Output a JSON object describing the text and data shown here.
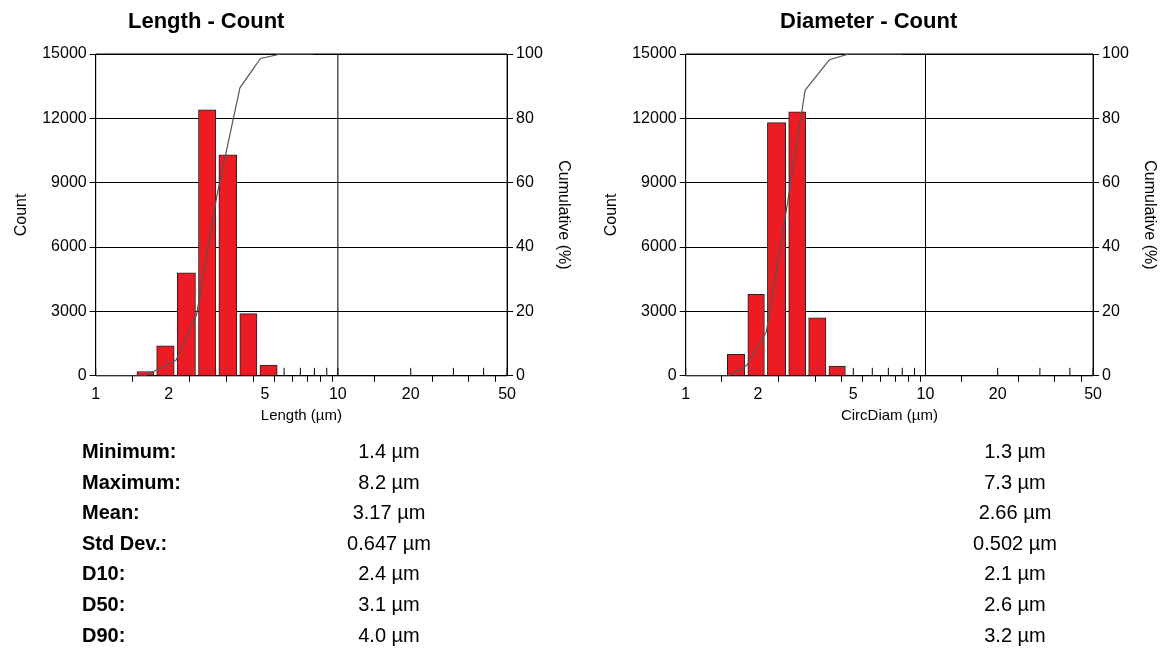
{
  "chart_data": [
    {
      "type": "histogram",
      "title": "Length - Count",
      "xlabel": "Length (µm)",
      "ylabel": "Count",
      "y2label": "Cumulative (%)",
      "log": "x",
      "grid": "y",
      "bins": [
        1.46,
        1.76,
        2.14,
        2.62,
        3.18,
        3.88,
        4.7,
        5.7
      ],
      "values": [
        200,
        1400,
        4800,
        12400,
        10300,
        2900,
        500
      ],
      "color": "#ed1c24",
      "series": [
        {
          "type": "line",
          "axis": "y2",
          "color": "#555555",
          "x": [
            1,
            1.6,
            2.15,
            2.61,
            3.16,
            3.94,
            4.79,
            5.82,
            7.96
          ],
          "values": [
            0,
            0,
            4.9,
            19,
            55.7,
            89.5,
            98.6,
            100,
            100
          ]
        }
      ],
      "xlim": [
        1,
        50
      ],
      "xticks": [
        1,
        2,
        {
          "value": 3,
          "label": null
        },
        {
          "value": 4,
          "label": null
        },
        5,
        {
          "value": 6,
          "label": null
        },
        {
          "value": 7,
          "label": null
        },
        {
          "value": 8,
          "label": null
        },
        {
          "value": 9,
          "label": null
        },
        10,
        20,
        {
          "value": 30,
          "label": null
        },
        {
          "value": 40,
          "label": null
        },
        50
      ],
      "ylim": [
        0,
        15000
      ],
      "yticks": [
        0,
        3000,
        6000,
        9000,
        12000,
        15000
      ],
      "y2lim": [
        0,
        100
      ],
      "y2ticks": [
        0,
        20,
        40,
        60,
        80,
        100
      ],
      "ref_lines": [
        {
          "axis": "x",
          "value": 10
        }
      ]
    },
    {
      "type": "histogram",
      "title": "Diameter - Count",
      "xlabel": "CircDiam (µm)",
      "ylabel": "Count",
      "y2label": "Cumulative (%)",
      "log": "x",
      "grid": "y",
      "bins": [
        1.47,
        1.79,
        2.16,
        2.65,
        3.21,
        3.9,
        4.7
      ],
      "values": [
        1000,
        3800,
        11800,
        12300,
        2700,
        450
      ],
      "color": "#ed1c24",
      "series": [
        {
          "type": "line",
          "axis": "y2",
          "color": "#555555",
          "x": [
            1,
            1.51,
            1.8,
            2.17,
            2.6,
            3.15,
            3.97,
            4.79,
            8
          ],
          "values": [
            0,
            0,
            3.3,
            13.7,
            49.2,
            88.8,
            98.2,
            100,
            100
          ]
        }
      ],
      "xlim": [
        1,
        50
      ],
      "xticks": [
        1,
        2,
        {
          "value": 3,
          "label": null
        },
        {
          "value": 4,
          "label": null
        },
        5,
        {
          "value": 6,
          "label": null
        },
        {
          "value": 7,
          "label": null
        },
        {
          "value": 8,
          "label": null
        },
        {
          "value": 9,
          "label": null
        },
        10,
        20,
        {
          "value": 30,
          "label": null
        },
        {
          "value": 40,
          "label": null
        },
        50
      ],
      "ylim": [
        0,
        15000
      ],
      "yticks": [
        0,
        3000,
        6000,
        9000,
        12000,
        15000
      ],
      "y2lim": [
        0,
        100
      ],
      "y2ticks": [
        0,
        20,
        40,
        60,
        80,
        100
      ],
      "ref_lines": [
        {
          "axis": "x",
          "value": 10
        }
      ]
    },
    {
      "type": "other",
      "annotations": [
        "Minimum:",
        "1.4 µm",
        "1.3 µm",
        "Maximum:",
        "8.2 µm",
        "7.3 µm",
        "Mean:",
        "3.17 µm",
        "2.66 µm",
        "Std Dev.:",
        "0.647 µm",
        "0.502 µm",
        "D10:",
        "2.4 µm",
        "2.1 µm",
        "D50:",
        "3.1 µm",
        "2.6 µm",
        "D90:",
        "4.0 µm",
        "3.2 µm"
      ]
    }
  ]
}
